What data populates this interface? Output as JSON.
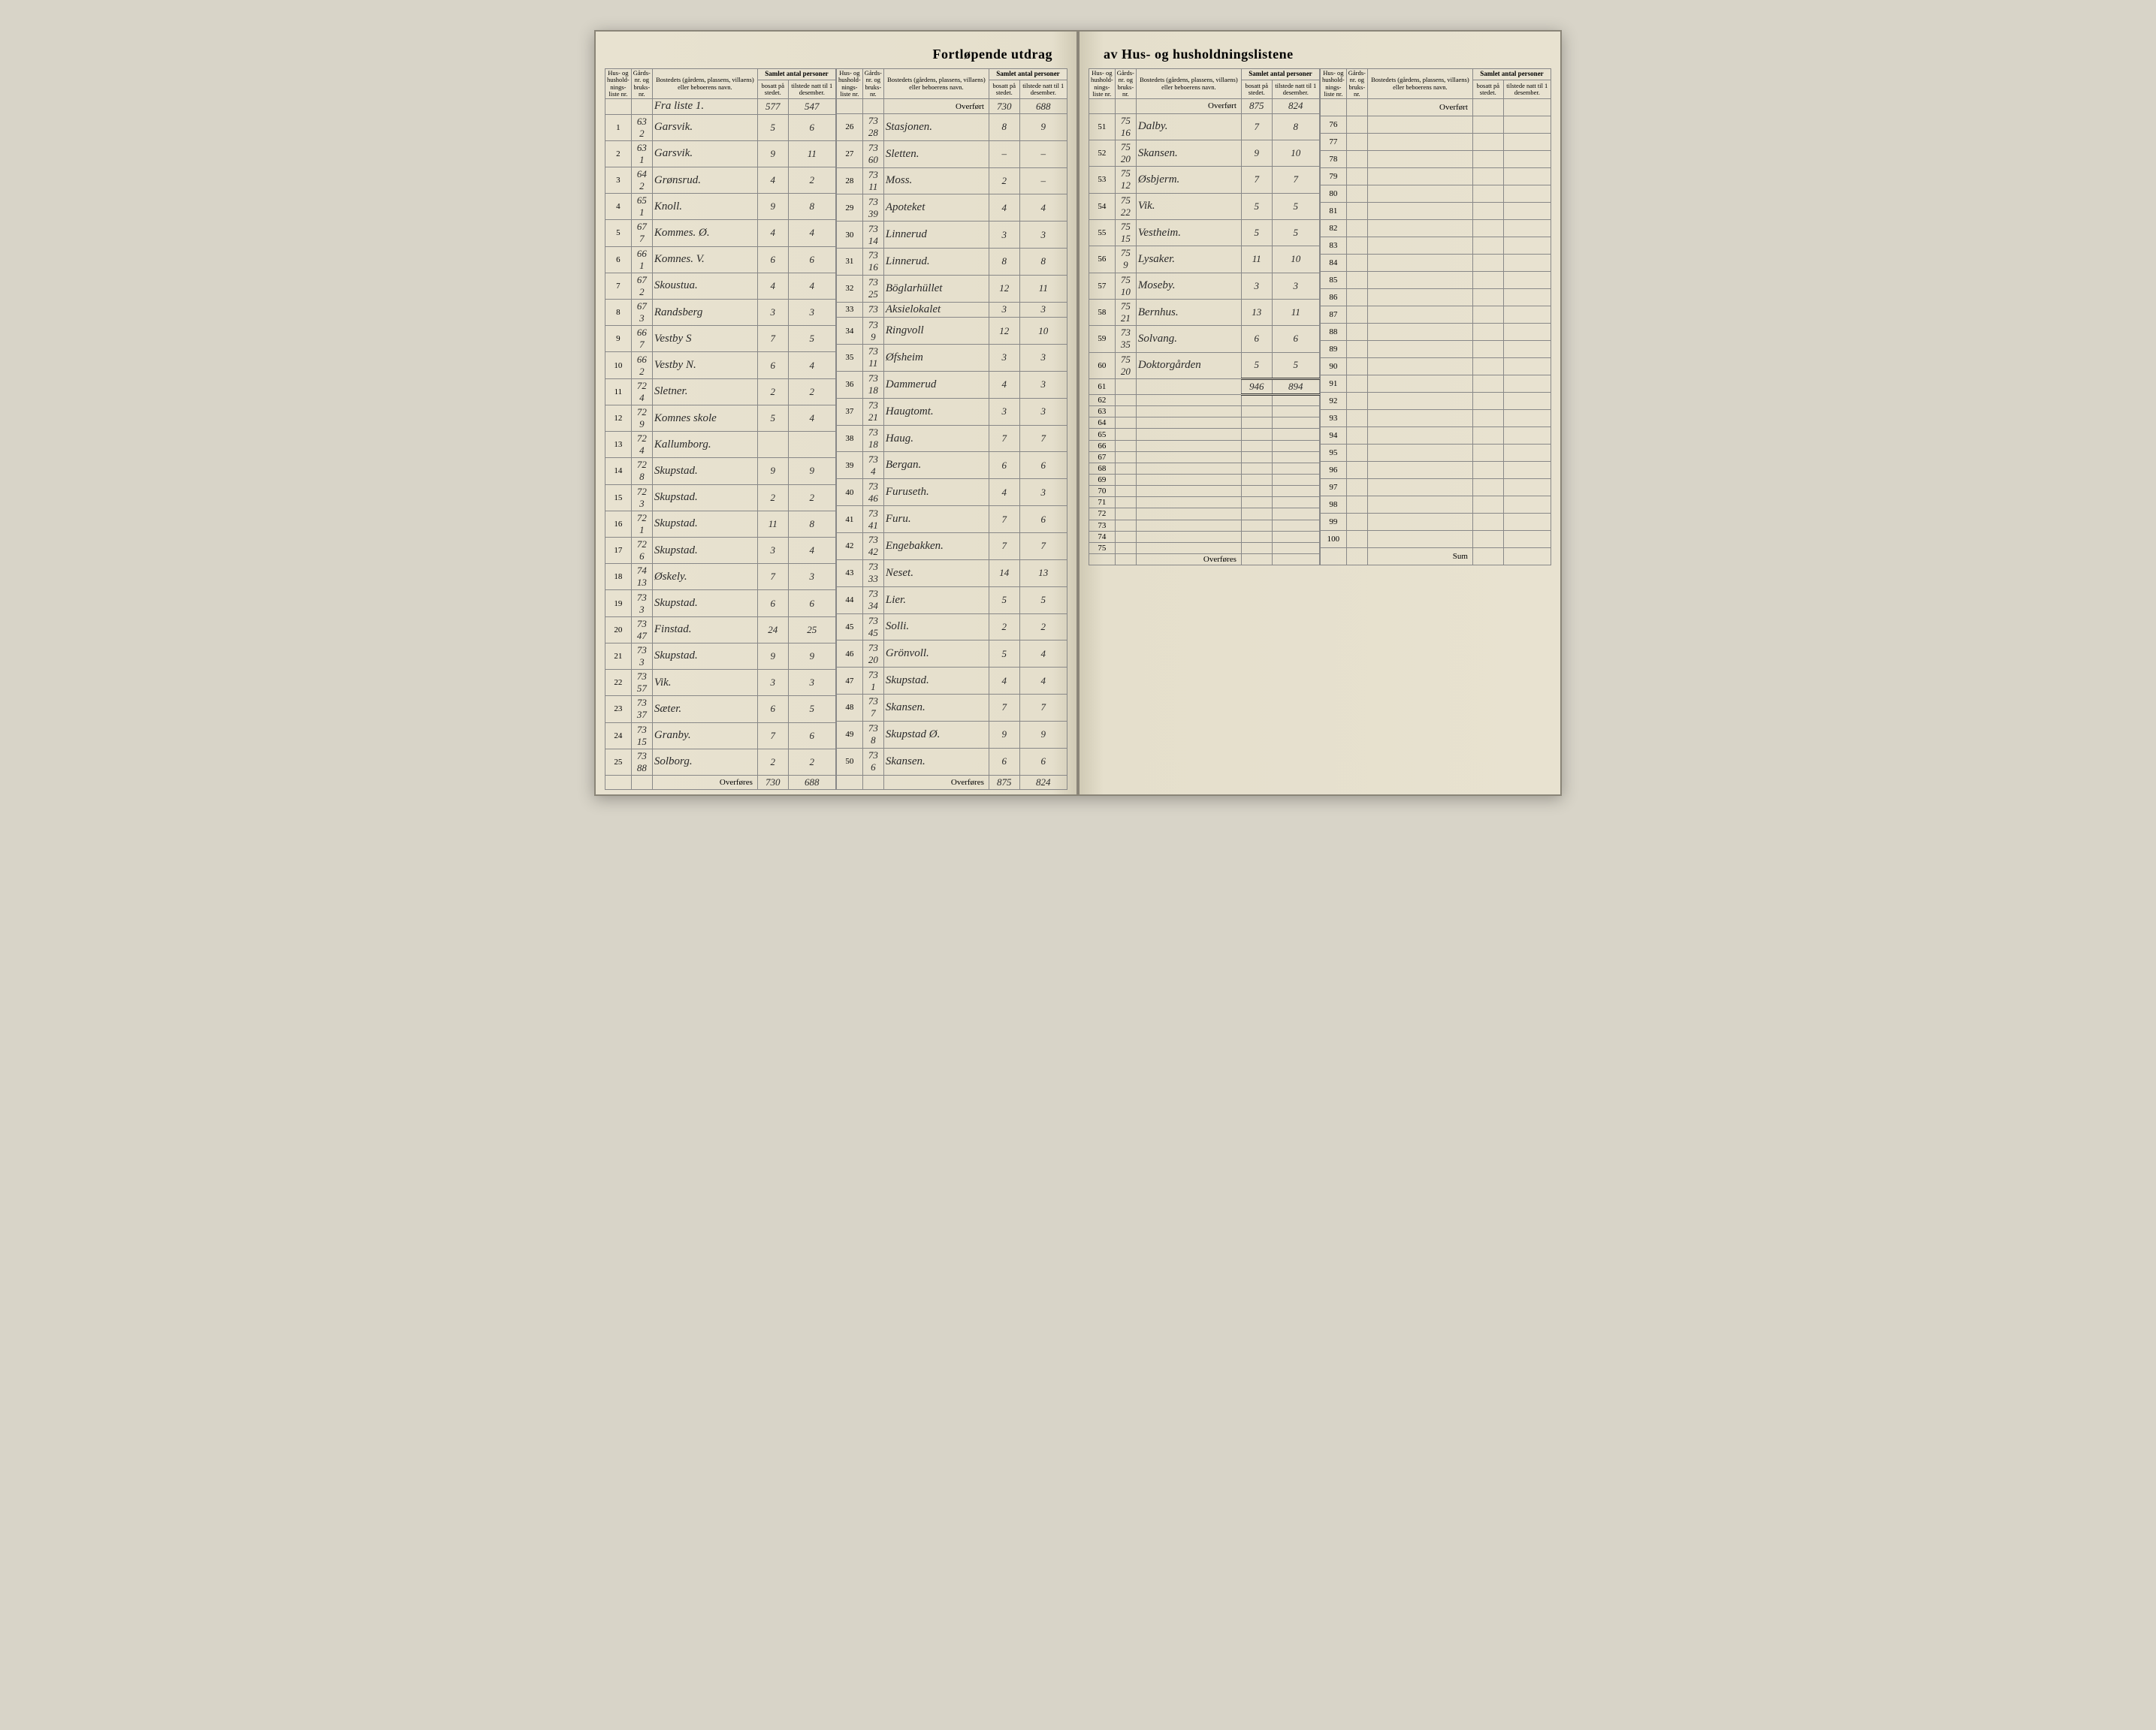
{
  "title_left": "Fortløpende utdrag",
  "title_right": "av Hus- og husholdningslistene",
  "headers": {
    "liste": "Hus- og hushold-nings-liste nr.",
    "gard": "Gårds-nr. og bruks-nr.",
    "bosted": "Bostedets (gårdens, plassens, villaens) eller beboerens navn.",
    "samlet": "Samlet antal personer",
    "bosatt": "bosatt på stedet.",
    "tilstede": "tilstede natt til 1 desember."
  },
  "labels": {
    "overfort": "Overført",
    "overfores": "Overføres",
    "sum": "Sum",
    "fra_liste": "Fra liste 1."
  },
  "opening": {
    "bosatt": "577",
    "tilstede": "547"
  },
  "quad1": {
    "rows": [
      {
        "n": "1",
        "g1": "63",
        "g2": "2",
        "name": "Garsvik.",
        "b": "5",
        "t": "6"
      },
      {
        "n": "2",
        "g1": "63",
        "g2": "1",
        "name": "Garsvik.",
        "b": "9",
        "t": "11"
      },
      {
        "n": "3",
        "g1": "64",
        "g2": "2",
        "name": "Grønsrud.",
        "b": "4",
        "t": "2"
      },
      {
        "n": "4",
        "g1": "65",
        "g2": "1",
        "name": "Knoll.",
        "b": "9",
        "t": "8"
      },
      {
        "n": "5",
        "g1": "67",
        "g2": "7",
        "name": "Kommes. Ø.",
        "b": "4",
        "t": "4"
      },
      {
        "n": "6",
        "g1": "66",
        "g2": "1",
        "name": "Komnes. V.",
        "b": "6",
        "t": "6"
      },
      {
        "n": "7",
        "g1": "67",
        "g2": "2",
        "name": "Skoustua.",
        "b": "4",
        "t": "4"
      },
      {
        "n": "8",
        "g1": "67",
        "g2": "3",
        "name": "Randsberg",
        "b": "3",
        "t": "3"
      },
      {
        "n": "9",
        "g1": "66",
        "g2": "7",
        "name": "Vestby S",
        "b": "7",
        "t": "5"
      },
      {
        "n": "10",
        "g1": "66",
        "g2": "2",
        "name": "Vestby N.",
        "b": "6",
        "t": "4"
      },
      {
        "n": "11",
        "g1": "72",
        "g2": "4",
        "name": "Sletner.",
        "b": "2",
        "t": "2"
      },
      {
        "n": "12",
        "g1": "72",
        "g2": "9",
        "name": "Komnes skole",
        "b": "5",
        "t": "4"
      },
      {
        "n": "13",
        "g1": "72",
        "g2": "4",
        "name": "Kallumborg.",
        "b": "",
        "t": ""
      },
      {
        "n": "14",
        "g1": "72",
        "g2": "8",
        "name": "Skupstad.",
        "b": "9",
        "t": "9"
      },
      {
        "n": "15",
        "g1": "72",
        "g2": "3",
        "name": "Skupstad.",
        "b": "2",
        "t": "2"
      },
      {
        "n": "16",
        "g1": "72",
        "g2": "1",
        "name": "Skupstad.",
        "b": "11",
        "t": "8"
      },
      {
        "n": "17",
        "g1": "72",
        "g2": "6",
        "name": "Skupstad.",
        "b": "3",
        "t": "4"
      },
      {
        "n": "18",
        "g1": "74",
        "g2": "13",
        "name": "Øskely.",
        "b": "7",
        "t": "3"
      },
      {
        "n": "19",
        "g1": "73",
        "g2": "3",
        "name": "Skupstad.",
        "b": "6",
        "t": "6"
      },
      {
        "n": "20",
        "g1": "73",
        "g2": "47",
        "name": "Finstad.",
        "b": "24",
        "t": "25"
      },
      {
        "n": "21",
        "g1": "73",
        "g2": "3",
        "name": "Skupstad.",
        "b": "9",
        "t": "9"
      },
      {
        "n": "22",
        "g1": "73",
        "g2": "57",
        "name": "Vik.",
        "b": "3",
        "t": "3"
      },
      {
        "n": "23",
        "g1": "73",
        "g2": "37",
        "name": "Sæter.",
        "b": "6",
        "t": "5"
      },
      {
        "n": "24",
        "g1": "73",
        "g2": "15",
        "name": "Granby.",
        "b": "7",
        "t": "6"
      },
      {
        "n": "25",
        "g1": "73",
        "g2": "88",
        "name": "Solborg.",
        "b": "2",
        "t": "2"
      }
    ],
    "carry": {
      "b": "730",
      "t": "688"
    }
  },
  "quad2": {
    "overfort": {
      "b": "730",
      "t": "688"
    },
    "rows": [
      {
        "n": "26",
        "g1": "73",
        "g2": "28",
        "name": "Stasjonen.",
        "b": "8",
        "t": "9"
      },
      {
        "n": "27",
        "g1": "73",
        "g2": "60",
        "name": "Sletten.",
        "b": "–",
        "t": "–"
      },
      {
        "n": "28",
        "g1": "73",
        "g2": "11",
        "name": "Moss.",
        "b": "2",
        "t": "–"
      },
      {
        "n": "29",
        "g1": "73",
        "g2": "39",
        "name": "Apoteket",
        "b": "4",
        "t": "4"
      },
      {
        "n": "30",
        "g1": "73",
        "g2": "14",
        "name": "Linnerud",
        "b": "3",
        "t": "3"
      },
      {
        "n": "31",
        "g1": "73",
        "g2": "16",
        "name": "Linnerud.",
        "b": "8",
        "t": "8"
      },
      {
        "n": "32",
        "g1": "73",
        "g2": "25",
        "name": "Böglarhüllet",
        "b": "12",
        "t": "11"
      },
      {
        "n": "33",
        "g1": "73",
        "g2": "",
        "name": "Aksielokalet",
        "b": "3",
        "t": "3"
      },
      {
        "n": "34",
        "g1": "73",
        "g2": "9",
        "name": "Ringvoll",
        "b": "12",
        "t": "10"
      },
      {
        "n": "35",
        "g1": "73",
        "g2": "11",
        "name": "Øfsheim",
        "b": "3",
        "t": "3"
      },
      {
        "n": "36",
        "g1": "73",
        "g2": "18",
        "name": "Dammerud",
        "b": "4",
        "t": "3"
      },
      {
        "n": "37",
        "g1": "73",
        "g2": "21",
        "name": "Haugtomt.",
        "b": "3",
        "t": "3"
      },
      {
        "n": "38",
        "g1": "73",
        "g2": "18",
        "name": "Haug.",
        "b": "7",
        "t": "7"
      },
      {
        "n": "39",
        "g1": "73",
        "g2": "4",
        "name": "Bergan.",
        "b": "6",
        "t": "6"
      },
      {
        "n": "40",
        "g1": "73",
        "g2": "46",
        "name": "Furuseth.",
        "b": "4",
        "t": "3"
      },
      {
        "n": "41",
        "g1": "73",
        "g2": "41",
        "name": "Furu.",
        "b": "7",
        "t": "6"
      },
      {
        "n": "42",
        "g1": "73",
        "g2": "42",
        "name": "Engebakken.",
        "b": "7",
        "t": "7"
      },
      {
        "n": "43",
        "g1": "73",
        "g2": "33",
        "name": "Neset.",
        "b": "14",
        "t": "13"
      },
      {
        "n": "44",
        "g1": "73",
        "g2": "34",
        "name": "Lier.",
        "b": "5",
        "t": "5"
      },
      {
        "n": "45",
        "g1": "73",
        "g2": "45",
        "name": "Solli.",
        "b": "2",
        "t": "2"
      },
      {
        "n": "46",
        "g1": "73",
        "g2": "20",
        "name": "Grönvoll.",
        "b": "5",
        "t": "4"
      },
      {
        "n": "47",
        "g1": "73",
        "g2": "1",
        "name": "Skupstad.",
        "b": "4",
        "t": "4"
      },
      {
        "n": "48",
        "g1": "73",
        "g2": "7",
        "name": "Skansen.",
        "b": "7",
        "t": "7"
      },
      {
        "n": "49",
        "g1": "73",
        "g2": "8",
        "name": "Skupstad Ø.",
        "b": "9",
        "t": "9"
      },
      {
        "n": "50",
        "g1": "73",
        "g2": "6",
        "name": "Skansen.",
        "b": "6",
        "t": "6"
      }
    ],
    "carry": {
      "b": "875",
      "t": "824"
    }
  },
  "quad3": {
    "overfort": {
      "b": "875",
      "t": "824"
    },
    "rows": [
      {
        "n": "51",
        "g1": "75",
        "g2": "16",
        "name": "Dalby.",
        "b": "7",
        "t": "8"
      },
      {
        "n": "52",
        "g1": "75",
        "g2": "20",
        "name": "Skansen.",
        "b": "9",
        "t": "10"
      },
      {
        "n": "53",
        "g1": "75",
        "g2": "12",
        "name": "Øsbjerm.",
        "b": "7",
        "t": "7"
      },
      {
        "n": "54",
        "g1": "75",
        "g2": "22",
        "name": "Vik.",
        "b": "5",
        "t": "5"
      },
      {
        "n": "55",
        "g1": "75",
        "g2": "15",
        "name": "Vestheim.",
        "b": "5",
        "t": "5"
      },
      {
        "n": "56",
        "g1": "75",
        "g2": "9",
        "name": "Lysaker.",
        "b": "11",
        "t": "10"
      },
      {
        "n": "57",
        "g1": "75",
        "g2": "10",
        "name": "Moseby.",
        "b": "3",
        "t": "3"
      },
      {
        "n": "58",
        "g1": "75",
        "g2": "21",
        "name": "Bernhus.",
        "b": "13",
        "t": "11"
      },
      {
        "n": "59",
        "g1": "73",
        "g2": "35",
        "name": "Solvang.",
        "b": "6",
        "t": "6"
      },
      {
        "n": "60",
        "g1": "75",
        "g2": "20",
        "name": "Doktorgården",
        "b": "5",
        "t": "5"
      },
      {
        "n": "61",
        "g1": "",
        "g2": "",
        "name": "",
        "b": "946",
        "t": "894",
        "sum": true
      },
      {
        "n": "62"
      },
      {
        "n": "63"
      },
      {
        "n": "64"
      },
      {
        "n": "65"
      },
      {
        "n": "66"
      },
      {
        "n": "67"
      },
      {
        "n": "68"
      },
      {
        "n": "69"
      },
      {
        "n": "70"
      },
      {
        "n": "71"
      },
      {
        "n": "72"
      },
      {
        "n": "73"
      },
      {
        "n": "74"
      },
      {
        "n": "75"
      }
    ],
    "carry": {
      "b": "",
      "t": ""
    }
  },
  "quad4": {
    "overfort": {
      "b": "",
      "t": ""
    },
    "rows": [
      {
        "n": "76"
      },
      {
        "n": "77"
      },
      {
        "n": "78"
      },
      {
        "n": "79"
      },
      {
        "n": "80"
      },
      {
        "n": "81"
      },
      {
        "n": "82"
      },
      {
        "n": "83"
      },
      {
        "n": "84"
      },
      {
        "n": "85"
      },
      {
        "n": "86"
      },
      {
        "n": "87"
      },
      {
        "n": "88"
      },
      {
        "n": "89"
      },
      {
        "n": "90"
      },
      {
        "n": "91"
      },
      {
        "n": "92"
      },
      {
        "n": "93"
      },
      {
        "n": "94"
      },
      {
        "n": "95"
      },
      {
        "n": "96"
      },
      {
        "n": "97"
      },
      {
        "n": "98"
      },
      {
        "n": "99"
      },
      {
        "n": "100"
      }
    ]
  }
}
